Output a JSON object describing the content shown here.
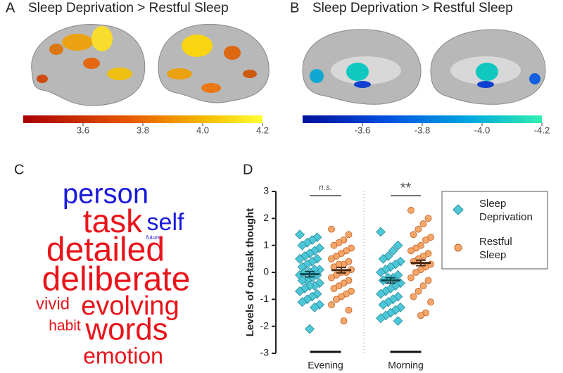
{
  "panels": [
    {
      "label": "A",
      "title": "Sleep Deprivation > Restful Sleep",
      "clim": [
        3.4,
        4.2
      ],
      "cticks": [
        3.6,
        3.8,
        {
          "value": 4,
          "label": "4.0"
        },
        4.2
      ]
    },
    {
      "label": "B",
      "title": "Sleep Deprivation > Restful Sleep",
      "clim": [
        -3.4,
        -4.2
      ],
      "cticks": [
        -3.6,
        -3.8,
        {
          "value": -4,
          "label": "-4.0"
        },
        -4.2
      ]
    },
    {
      "label": "C"
    },
    {
      "label": "D"
    }
  ],
  "word_cloud": [
    {
      "word": "person",
      "color": "#1a1adb"
    },
    {
      "word": "task",
      "color": "#e8141a"
    },
    {
      "word": "self",
      "color": "#1a1adb"
    },
    {
      "word": "future",
      "color": "#1a1adb"
    },
    {
      "word": "detailed",
      "color": "#e8141a"
    },
    {
      "word": "deliberate",
      "color": "#e8141a"
    },
    {
      "word": "vivid",
      "color": "#e8141a"
    },
    {
      "word": "evolving",
      "color": "#e8141a"
    },
    {
      "word": "habit",
      "color": "#e8141a"
    },
    {
      "word": "words",
      "color": "#e8141a"
    },
    {
      "word": "emotion",
      "color": "#e8141a"
    }
  ],
  "chart_data": {
    "type": "dot",
    "ylabel": "Levels of on-task thought",
    "categories": [
      "Evening",
      "Morning"
    ],
    "ylim": [
      -3,
      3
    ],
    "yticks": [
      -3,
      -2,
      -1,
      0,
      1,
      2,
      3
    ],
    "annotations": [
      "n.s.",
      "**"
    ],
    "series": [
      {
        "name": "Sleep Deprivation",
        "color": "#4dc8d8",
        "marker": "diamond",
        "mean": [
          -0.07,
          -0.3
        ],
        "sem": [
          0.1,
          0.1
        ],
        "values": [
          [
            1.4,
            1.3,
            1.2,
            1.1,
            1.0,
            0.9,
            0.8,
            0.7,
            0.6,
            0.5,
            0.5,
            0.4,
            0.3,
            0.2,
            0.1,
            0.1,
            0,
            0,
            -0.1,
            -0.1,
            -0.2,
            -0.3,
            -0.3,
            -0.4,
            -0.5,
            -0.5,
            -0.6,
            -0.7,
            -0.8,
            -0.9,
            -1.0,
            -1.1,
            -1.2,
            -1.3,
            -2.1
          ],
          [
            1.5,
            1.0,
            0.8,
            0.6,
            0.5,
            0.4,
            0.3,
            0.2,
            0.1,
            0,
            -0.1,
            -0.2,
            -0.2,
            -0.3,
            -0.4,
            -0.5,
            -0.6,
            -0.7,
            -0.8,
            -0.9,
            -1.0,
            -1.1,
            -1.2,
            -1.3,
            -1.4,
            -1.5,
            -1.6,
            -1.7,
            -1.8
          ]
        ]
      },
      {
        "name": "Restful Sleep",
        "color": "#f5a66b",
        "marker": "circle",
        "mean": [
          0.08,
          0.35
        ],
        "sem": [
          0.1,
          0.1
        ],
        "values": [
          [
            1.6,
            1.4,
            1.2,
            1.1,
            1.0,
            0.9,
            0.8,
            0.7,
            0.6,
            0.5,
            0.4,
            0.3,
            0.3,
            0.2,
            0.1,
            0,
            0,
            -0.1,
            -0.2,
            -0.3,
            -0.4,
            -0.5,
            -0.6,
            -0.7,
            -0.8,
            -0.9,
            -1.0,
            -1.2,
            -1.4,
            -1.8
          ],
          [
            2.3,
            2.0,
            1.8,
            1.6,
            1.4,
            1.3,
            1.2,
            1.0,
            0.9,
            0.8,
            0.7,
            0.6,
            0.5,
            0.4,
            0.3,
            0.2,
            0.1,
            0,
            -0.2,
            -0.3,
            -0.5,
            -0.7,
            -0.9,
            -1.1,
            -1.5,
            -1.6
          ]
        ]
      }
    ]
  }
}
